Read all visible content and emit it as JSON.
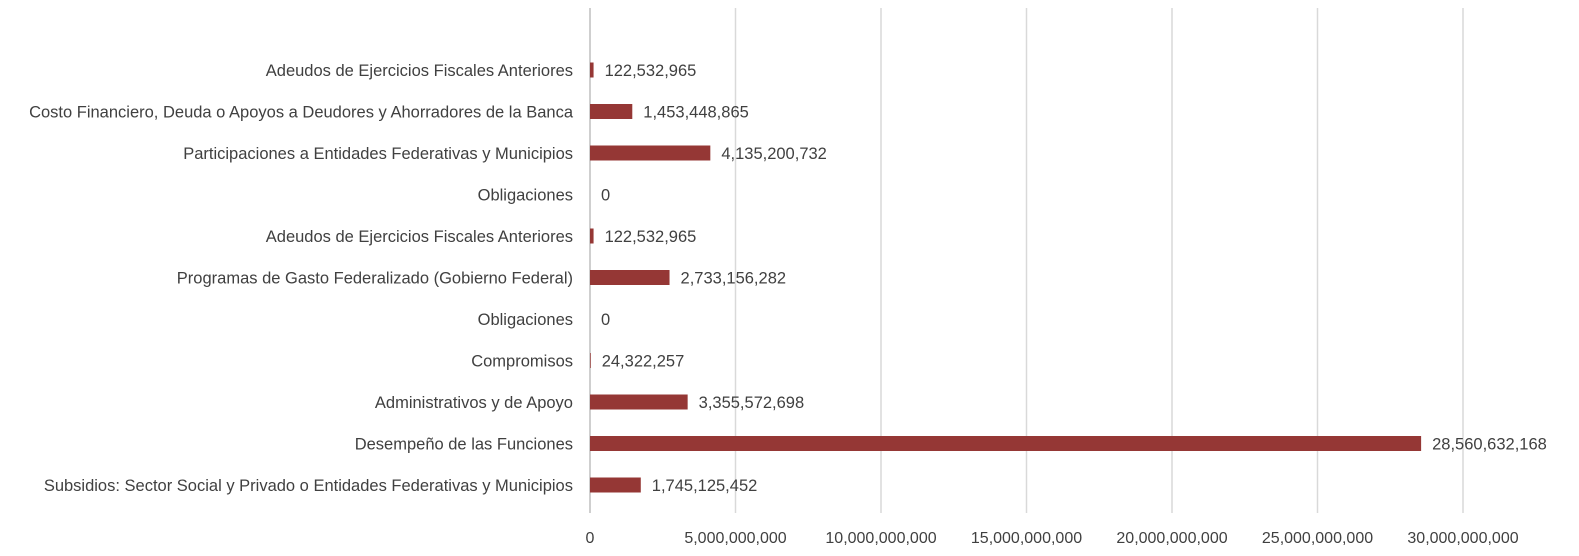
{
  "chart_data": {
    "type": "bar",
    "orientation": "horizontal",
    "title": "",
    "xlabel": "",
    "ylabel": "",
    "categories": [
      "Adeudos de Ejercicios Fiscales Anteriores",
      "Costo Financiero, Deuda o Apoyos a Deudores y Ahorradores de la Banca",
      "Participaciones a Entidades Federativas y Municipios",
      "Obligaciones",
      "Adeudos de Ejercicios Fiscales Anteriores",
      "Programas de Gasto Federalizado (Gobierno Federal)",
      "Obligaciones",
      "Compromisos",
      "Administrativos y de Apoyo",
      "Desempeño de las Funciones",
      "Subsidios: Sector Social y Privado o Entidades Federativas y Municipios"
    ],
    "values": [
      122532965,
      1453448865,
      4135200732,
      0,
      122532965,
      2733156282,
      0,
      24322257,
      3355572698,
      28560632168,
      1745125452
    ],
    "data_labels": [
      "122,532,965",
      "1,453,448,865",
      "4,135,200,732",
      "0",
      "122,532,965",
      "2,733,156,282",
      "0",
      "24,322,257",
      "3,355,572,698",
      "28,560,632,168",
      "1,745,125,452"
    ],
    "xlim": [
      0,
      30000000000
    ],
    "x_ticks": [
      0,
      5000000000,
      10000000000,
      15000000000,
      20000000000,
      25000000000,
      30000000000
    ],
    "x_tick_labels": [
      "0",
      "5,000,000,000",
      "10,000,000,000",
      "15,000,000,000",
      "20,000,000,000",
      "25,000,000,000",
      "30,000,000,000"
    ],
    "grid": true,
    "legend": "none",
    "bar_color": "#953735"
  }
}
